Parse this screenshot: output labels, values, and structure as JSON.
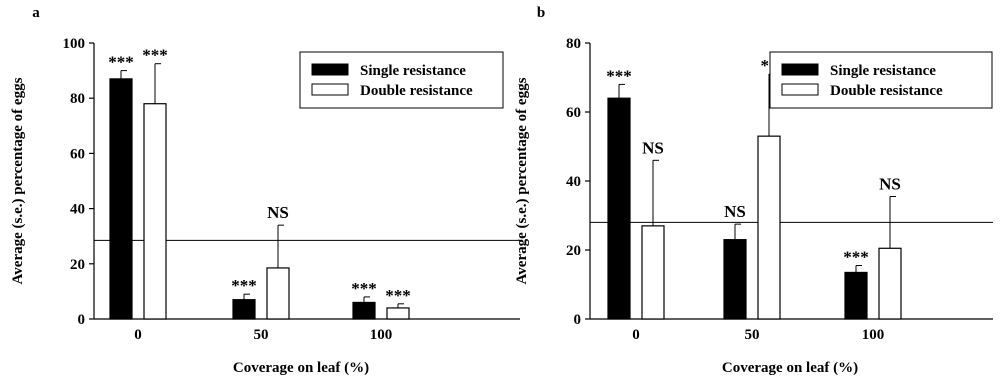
{
  "chart_data": [
    {
      "type": "bar",
      "panel": "a",
      "categories": [
        "0",
        "50",
        "100"
      ],
      "series": [
        {
          "name": "Single resistance",
          "color": "#000000",
          "values": [
            87,
            7,
            6
          ],
          "errors": [
            3,
            2,
            2
          ],
          "significance": [
            "***",
            "***",
            "***"
          ]
        },
        {
          "name": "Double resistance",
          "color": "#ffffff",
          "values": [
            78,
            18.5,
            4
          ],
          "errors": [
            14.5,
            15.5,
            1.5
          ],
          "significance": [
            "***",
            "NS",
            "***"
          ]
        }
      ],
      "xlabel": "Coverage on leaf (%)",
      "ylabel": "Average (s.e.) percentage of eggs",
      "ylim": [
        0,
        100
      ],
      "yticks": [
        0,
        20,
        40,
        60,
        80,
        100
      ],
      "reference_line": 28.5,
      "legend_position": "top-right",
      "grid": false
    },
    {
      "type": "bar",
      "panel": "b",
      "categories": [
        "0",
        "50",
        "100"
      ],
      "series": [
        {
          "name": "Single resistance",
          "color": "#000000",
          "values": [
            64,
            23,
            13.5
          ],
          "errors": [
            4,
            4.5,
            2
          ],
          "significance": [
            "***",
            "NS",
            "***"
          ]
        },
        {
          "name": "Double resistance",
          "color": "#ffffff",
          "values": [
            27,
            53,
            20.5
          ],
          "errors": [
            19,
            18,
            15
          ],
          "significance": [
            "NS",
            "**",
            "NS"
          ]
        }
      ],
      "xlabel": "Coverage on leaf (%)",
      "ylabel": "Average (s.e.) percentage of eggs",
      "ylim": [
        0,
        80
      ],
      "yticks": [
        0,
        20,
        40,
        60,
        80
      ],
      "reference_line": 28,
      "legend_position": "top-right",
      "grid": false
    }
  ]
}
